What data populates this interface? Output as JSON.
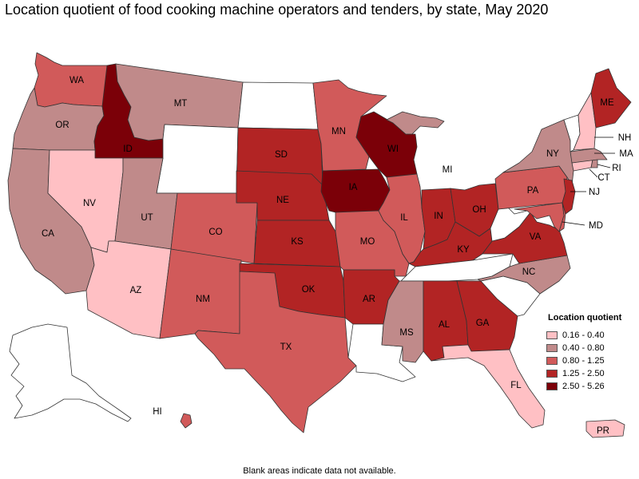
{
  "title": "Location quotient of food cooking machine operators and tenders, by state, May 2020",
  "footnote": "Blank areas indicate data not available.",
  "legend": {
    "title": "Location quotient",
    "items": [
      {
        "label": "0.16 - 0.40",
        "color": "#ffc0c4"
      },
      {
        "label": "0.40 - 0.80",
        "color": "#c08a8a"
      },
      {
        "label": "0.80 - 1.25",
        "color": "#d15a5a"
      },
      {
        "label": "1.25 - 2.50",
        "color": "#b22424"
      },
      {
        "label": "2.50 - 5.26",
        "color": "#7b0008"
      }
    ]
  },
  "no_data_color": "#ffffff",
  "states": {
    "WA": {
      "label": "WA",
      "cls": 2
    },
    "OR": {
      "label": "OR",
      "cls": 1
    },
    "CA": {
      "label": "CA",
      "cls": 1
    },
    "ID": {
      "label": "ID",
      "cls": 4
    },
    "NV": {
      "label": "NV",
      "cls": 0
    },
    "MT": {
      "label": "MT",
      "cls": 1
    },
    "WY": {
      "label": "",
      "cls": null
    },
    "UT": {
      "label": "UT",
      "cls": 1
    },
    "AZ": {
      "label": "AZ",
      "cls": 0
    },
    "CO": {
      "label": "CO",
      "cls": 2
    },
    "NM": {
      "label": "NM",
      "cls": 2
    },
    "ND": {
      "label": "",
      "cls": null
    },
    "SD": {
      "label": "SD",
      "cls": 3
    },
    "NE": {
      "label": "NE",
      "cls": 3
    },
    "KS": {
      "label": "KS",
      "cls": 3
    },
    "OK": {
      "label": "OK",
      "cls": 3
    },
    "TX": {
      "label": "TX",
      "cls": 2
    },
    "MN": {
      "label": "MN",
      "cls": 2
    },
    "IA": {
      "label": "IA",
      "cls": 4
    },
    "MO": {
      "label": "MO",
      "cls": 2
    },
    "AR": {
      "label": "AR",
      "cls": 3
    },
    "LA": {
      "label": "",
      "cls": null
    },
    "WI": {
      "label": "WI",
      "cls": 4
    },
    "IL": {
      "label": "IL",
      "cls": 2
    },
    "MI": {
      "label": "MI",
      "cls": 1
    },
    "IN": {
      "label": "IN",
      "cls": 3
    },
    "OH": {
      "label": "OH",
      "cls": 3
    },
    "KY": {
      "label": "KY",
      "cls": 3
    },
    "TN": {
      "label": "",
      "cls": null
    },
    "MS": {
      "label": "MS",
      "cls": 1
    },
    "AL": {
      "label": "AL",
      "cls": 3
    },
    "GA": {
      "label": "GA",
      "cls": 3
    },
    "FL": {
      "label": "FL",
      "cls": 0
    },
    "SC": {
      "label": "",
      "cls": null
    },
    "NC": {
      "label": "NC",
      "cls": 1
    },
    "VA": {
      "label": "VA",
      "cls": 3
    },
    "WV": {
      "label": "",
      "cls": null
    },
    "PA": {
      "label": "PA",
      "cls": 2
    },
    "NY": {
      "label": "NY",
      "cls": 1
    },
    "NJ": {
      "label": "NJ",
      "cls": 3
    },
    "MD": {
      "label": "MD",
      "cls": 2
    },
    "DE": {
      "label": "",
      "cls": 2
    },
    "CT": {
      "label": "CT",
      "cls": 0
    },
    "RI": {
      "label": "RI",
      "cls": 1
    },
    "MA": {
      "label": "MA",
      "cls": 1
    },
    "VT": {
      "label": "",
      "cls": null
    },
    "NH": {
      "label": "NH",
      "cls": 0
    },
    "ME": {
      "label": "ME",
      "cls": 3
    },
    "AK": {
      "label": "",
      "cls": null
    },
    "HI": {
      "label": "HI",
      "cls": 2
    },
    "PR": {
      "label": "PR",
      "cls": 0
    }
  }
}
